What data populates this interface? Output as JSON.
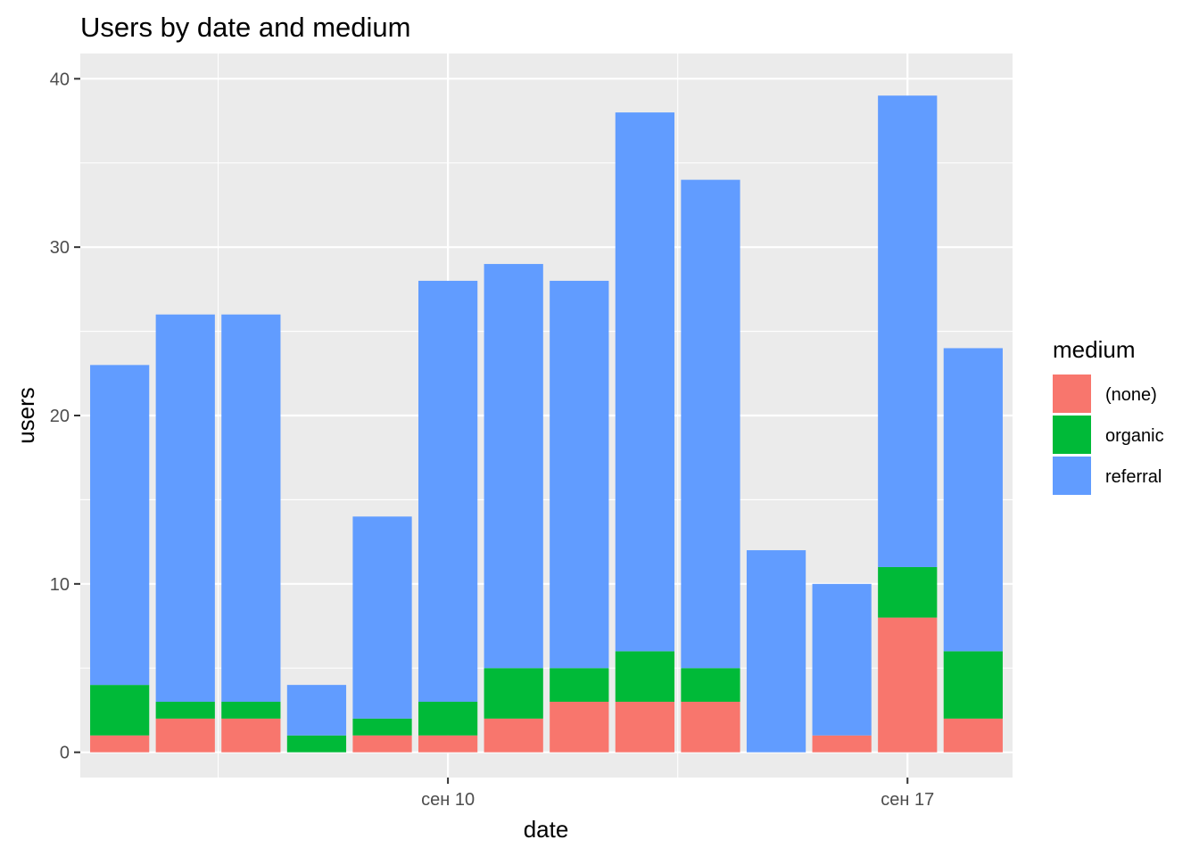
{
  "chart_data": {
    "type": "bar",
    "stacked": true,
    "title": "Users by date and medium",
    "xlabel": "date",
    "ylabel": "users",
    "ylim": [
      -1.5,
      41.5
    ],
    "y_ticks": [
      0,
      10,
      20,
      30,
      40
    ],
    "x": [
      "сен 05",
      "сен 06",
      "сен 07",
      "сен 08",
      "сен 09",
      "сен 10",
      "сен 11",
      "сен 12",
      "сен 13",
      "сен 14",
      "сен 15",
      "сен 16",
      "сен 17",
      "сен 18"
    ],
    "x_tick_labels": [
      {
        "at": "сен 10",
        "label": "сен 10"
      },
      {
        "at": "сен 17",
        "label": "сен 17"
      }
    ],
    "series": [
      {
        "name": "(none)",
        "color": "#F8766D",
        "values": [
          1,
          2,
          2,
          0,
          1,
          1,
          2,
          3,
          3,
          3,
          0,
          1,
          8,
          2
        ]
      },
      {
        "name": "organic",
        "color": "#00BA38",
        "values": [
          3,
          1,
          1,
          1,
          1,
          2,
          3,
          2,
          3,
          2,
          0,
          0,
          3,
          4
        ]
      },
      {
        "name": "referral",
        "color": "#619CFF",
        "values": [
          19,
          23,
          23,
          3,
          12,
          25,
          24,
          23,
          32,
          29,
          12,
          9,
          28,
          18
        ]
      }
    ],
    "legend": {
      "title": "medium",
      "position": "right"
    },
    "grid": true,
    "panel_background": "#EBEBEB",
    "grid_color": "#FFFFFF"
  }
}
